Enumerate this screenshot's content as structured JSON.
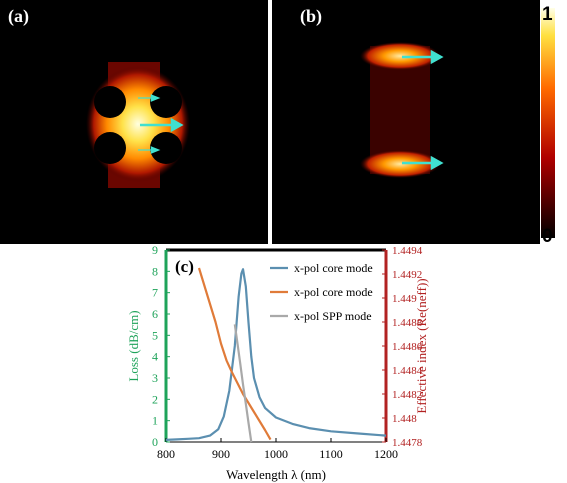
{
  "panels": {
    "a_label": "(a)",
    "b_label": "(b)",
    "colorbar": {
      "max_label": "1",
      "min_label": "0",
      "colormap": "hot"
    }
  },
  "chart_data": {
    "type": "line",
    "panel_label": "(c)",
    "xlabel": "Wavelength λ (nm)",
    "ylabel_left": "Loss (dB/cm)",
    "ylabel_right": "Effective index (Re(neff))",
    "xlim": [
      800,
      1200
    ],
    "ylim_left": [
      0,
      9
    ],
    "ylim_right": [
      1.4478,
      1.4494
    ],
    "x_ticks": [
      "800",
      "900",
      "1000",
      "1100",
      "1200"
    ],
    "y_left_ticks": [
      "0",
      "1",
      "2",
      "3",
      "4",
      "5",
      "6",
      "7",
      "8",
      "9"
    ],
    "y_right_ticks": [
      "1.4478",
      "1.448",
      "1.4482",
      "1.4484",
      "1.4486",
      "1.4488",
      "1.449",
      "1.4492",
      "1.4494"
    ],
    "legend_position": "top-right",
    "colors": {
      "left_axis": "#1ea35a",
      "right_axis": "#b22222"
    },
    "series": [
      {
        "name": "x-pol core mode",
        "axis": "left",
        "color": "#5b8fb0",
        "x": [
          800,
          820,
          840,
          860,
          880,
          895,
          905,
          915,
          925,
          932,
          937,
          940,
          945,
          950,
          955,
          960,
          970,
          980,
          1000,
          1030,
          1060,
          1100,
          1150,
          1200
        ],
        "y": [
          0.1,
          0.12,
          0.15,
          0.18,
          0.3,
          0.6,
          1.2,
          2.4,
          4.5,
          6.8,
          7.9,
          8.1,
          7.3,
          5.6,
          4.0,
          3.0,
          2.1,
          1.6,
          1.15,
          0.85,
          0.65,
          0.5,
          0.4,
          0.3
        ]
      },
      {
        "name": "x-pol core mode",
        "axis": "right",
        "color": "#e07b39",
        "x": [
          860,
          870,
          880,
          890,
          900,
          910,
          920,
          940,
          960,
          980,
          990
        ],
        "y": [
          1.44925,
          1.4491,
          1.44895,
          1.4488,
          1.44862,
          1.44848,
          1.44838,
          1.4482,
          1.44805,
          1.4479,
          1.44782
        ]
      },
      {
        "name": "x-pol SPP mode",
        "axis": "right",
        "color": "#a9a9a9",
        "x": [
          925,
          930,
          935,
          940,
          945,
          950,
          955
        ],
        "y": [
          1.44878,
          1.44862,
          1.44845,
          1.44828,
          1.44812,
          1.44796,
          1.4478
        ]
      }
    ]
  }
}
